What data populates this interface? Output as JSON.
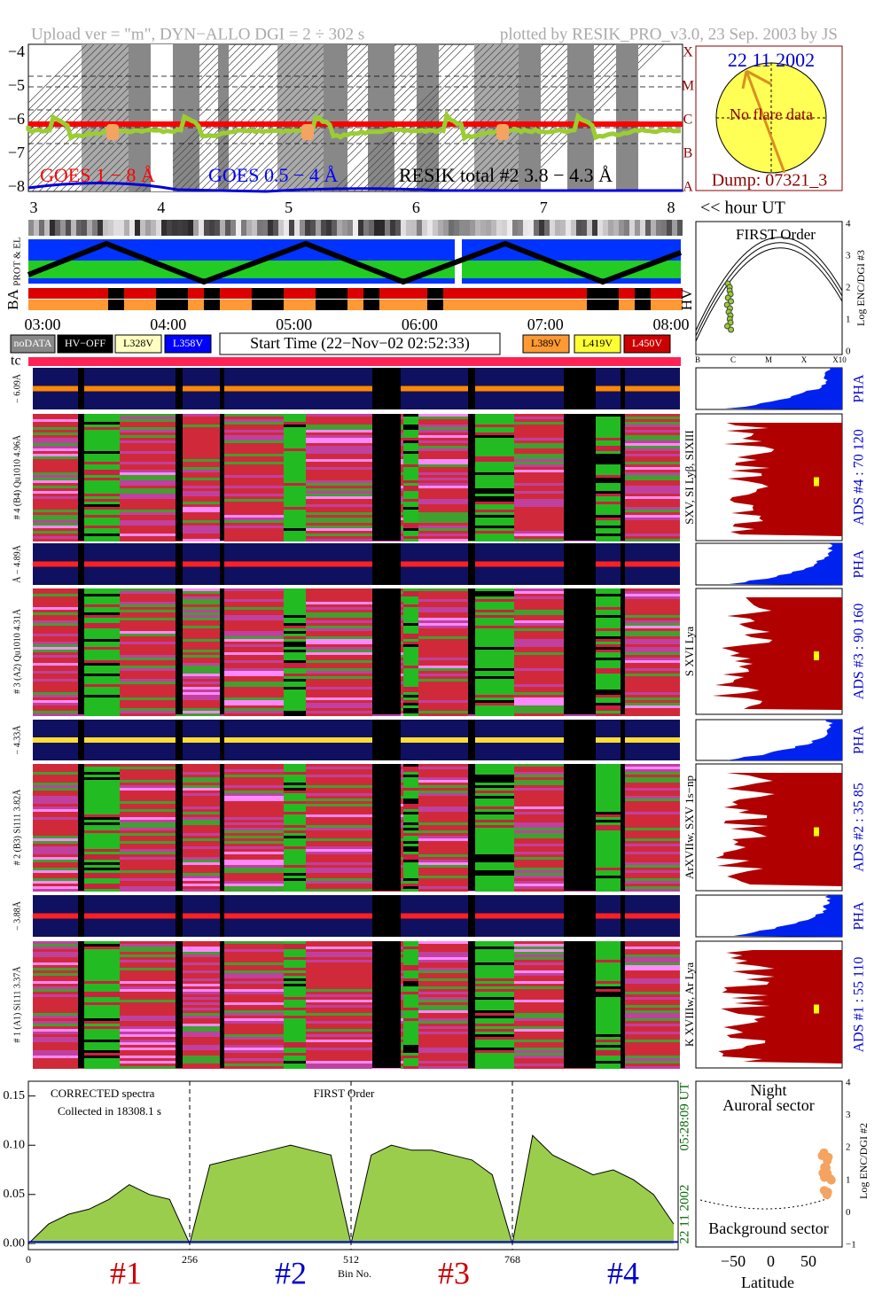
{
  "header": {
    "left": "Upload ver = \"m\", DYN−ALLO DGI =   2 ÷ 302 s",
    "right": "plotted by RESIK_PRO_v3.0, 23 Sep. 2003 by JS"
  },
  "goes": {
    "yticks": [
      "−4",
      "−5",
      "−6",
      "−7",
      "−8"
    ],
    "classes": [
      "A",
      "B",
      "C",
      "M",
      "X"
    ],
    "legend": [
      {
        "label": "GOES 1 − 8 Å",
        "color": "#ff0000"
      },
      {
        "label": "GOES 0.5 − 4 Å",
        "color": "#0000ff"
      },
      {
        "label": "RESIK total #2  3.8 − 4.3 Å",
        "color": "#000000"
      }
    ]
  },
  "locator": {
    "date": "22 11 2002",
    "note": "No flare data",
    "dump": "Dump: 07321_3"
  },
  "hours": {
    "ticks": [
      "3",
      "4",
      "5",
      "6",
      "7",
      "8"
    ],
    "label": "<< hour UT"
  },
  "status": {
    "labels": [
      "PROT & EL",
      "BA",
      "HV"
    ],
    "times": [
      "03:00",
      "04:00",
      "05:00",
      "06:00",
      "07:00",
      "08:00"
    ],
    "legend_left": [
      {
        "label": "noDATA",
        "color": "#888888"
      },
      {
        "label": "HV−OFF",
        "color": "#000000"
      },
      {
        "label": "L328V",
        "color": "#ffffc0"
      },
      {
        "label": "L358V",
        "color": "#0000ff"
      }
    ],
    "start": "Start Time (22−Nov−02 02:52:33)",
    "legend_right": [
      {
        "label": "L389V",
        "color": "#ff9933"
      },
      {
        "label": "L419V",
        "color": "#ffff33"
      },
      {
        "label": "L450V",
        "color": "#cc0000"
      }
    ],
    "tc": "tc"
  },
  "first_order": {
    "title": "FIRST Order",
    "yticks": [
      "0",
      "1",
      "2",
      "3",
      "4"
    ],
    "xticks": [
      "B",
      "C",
      "M",
      "X",
      "X10"
    ],
    "ylabel": "Log ENC/DGI #3"
  },
  "channels": [
    {
      "pha_left": "− 6.09Å",
      "main_left": "# 4 (B4) Qu1010 4.96Å",
      "lines": "SXV, SI Lyβ, SIXIII",
      "ads": "ADS #4 :   70 120",
      "pha": "PHA"
    },
    {
      "pha_left": "Å − 4.89Å",
      "main_left": "# 3 (A2) Qu1010 4.31Å",
      "lines": "S XVI Lya",
      "ads": "ADS #3 :   90 160",
      "pha": "PHA"
    },
    {
      "pha_left": "− 4.33Å",
      "main_left": "# 2 (B3) Si111 3.82Å",
      "lines": "ArXVIIw, SXV 1s−np",
      "ads": "ADS #2 :   35  85",
      "pha": "PHA"
    },
    {
      "pha_left": "− 3.88Å",
      "main_left": "# 1 (A1) Si111 3.37Å",
      "lines": "K XVIIIw, Ar Lya",
      "ads": "ADS #1 :   55 110",
      "pha": "PHA"
    }
  ],
  "spectrum": {
    "type": "area",
    "annotations": [
      "CORRECTED spectra",
      "Collected in 18308.1 s",
      "FIRST Order"
    ],
    "xlabel": "Bin No.",
    "x": [
      0,
      32,
      64,
      96,
      128,
      160,
      192,
      224,
      256,
      288,
      320,
      352,
      384,
      416,
      448,
      480,
      512,
      544,
      576,
      608,
      640,
      672,
      704,
      736,
      768,
      800,
      832,
      864,
      896,
      928,
      960,
      992,
      1024
    ],
    "values": [
      0.0,
      0.02,
      0.03,
      0.035,
      0.045,
      0.06,
      0.05,
      0.045,
      0.0,
      0.08,
      0.085,
      0.09,
      0.095,
      0.1,
      0.095,
      0.09,
      0.0,
      0.09,
      0.1,
      0.095,
      0.095,
      0.09,
      0.085,
      0.07,
      0.0,
      0.11,
      0.09,
      0.08,
      0.07,
      0.075,
      0.065,
      0.05,
      0.02
    ],
    "color": "#9acd4c",
    "xlim": [
      0,
      1031
    ],
    "ylim": [
      -0.006,
      0.165
    ],
    "xticks": [
      0,
      256,
      512,
      768
    ],
    "yticks": [
      {
        "value": 0,
        "label": "0.00"
      },
      {
        "value": 0.05,
        "label": "0.05"
      },
      {
        "value": 0.1,
        "label": "0.10"
      },
      {
        "value": 0.15,
        "label": "0.15"
      }
    ],
    "detectors": [
      {
        "label": "#1",
        "color": "#cc0000"
      },
      {
        "label": "#2",
        "color": "#0000cc"
      },
      {
        "label": "#3",
        "color": "#cc0000"
      },
      {
        "label": "#4",
        "color": "#0000cc"
      }
    ],
    "side": [
      "05:28:09 UT",
      "22 11 2002"
    ]
  },
  "aurora": {
    "top": [
      "Night",
      "Auroral sector"
    ],
    "bottom": "Background sector",
    "xlabel": "Latitude",
    "xticks": [
      "−50",
      "0",
      "50"
    ],
    "yticks": [
      "−1",
      "0",
      "1",
      "2",
      "3",
      "4"
    ],
    "ylabel": "Log ENC/DGI #2"
  }
}
